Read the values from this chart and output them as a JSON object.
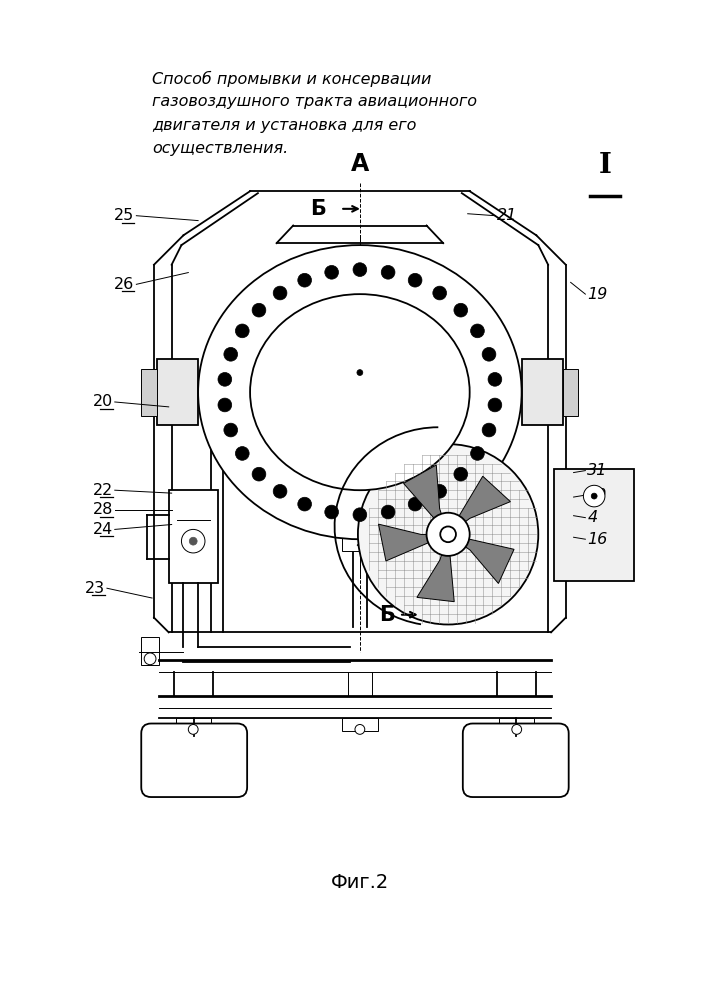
{
  "title_lines": [
    "Способ промывки и консервации",
    "газовоздушного тракта авиационного",
    "двигателя и установка для его",
    "осуществления."
  ],
  "fig_label": "Фиг.2",
  "bg_color": "#ffffff",
  "line_color": "#000000",
  "title_fontsize": 11.5,
  "label_fontsize": 11
}
